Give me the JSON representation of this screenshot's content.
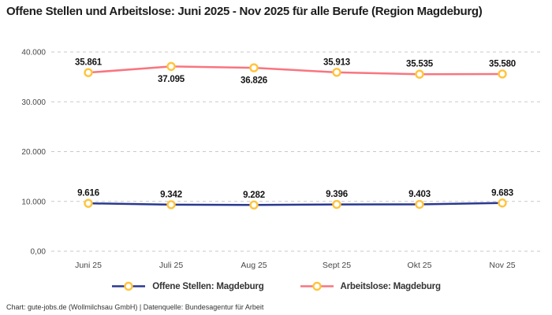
{
  "title": "Offene Stellen und Arbeitslose: Juni 2025 - Nov 2025 für alle Berufe (Region Magdeburg)",
  "footer": "Chart: gute-jobs.de (Wollmilchsau GmbH) | Datenquelle: Bundesagentur für Arbeit",
  "colors": {
    "offene_stellen_line": "#2A3990",
    "arbeitslose_line": "#F8757F",
    "marker_stroke": "#FFC43D",
    "marker_fill": "#FFFFFF",
    "gridline": "#C9C9C9",
    "axis_text": "#484848",
    "data_label": "#141414"
  },
  "chart_data": {
    "type": "line",
    "title": "Offene Stellen und Arbeitslose: Juni 2025 - Nov 2025 für alle Berufe (Region Magdeburg)",
    "categories": [
      "Juni 25",
      "Juli 25",
      "Aug 25",
      "Sept 25",
      "Okt 25",
      "Nov 25"
    ],
    "series": [
      {
        "name": "Offene Stellen: Magdeburg",
        "color": "#2A3990",
        "values": [
          9616,
          9342,
          9282,
          9396,
          9403,
          9683
        ],
        "labels": [
          "9.616",
          "9.342",
          "9.282",
          "9.396",
          "9.403",
          "9.683"
        ],
        "label_positions": [
          "above",
          "above",
          "above",
          "above",
          "above",
          "above"
        ]
      },
      {
        "name": "Arbeitslose: Magdeburg",
        "color": "#F8757F",
        "values": [
          35861,
          37095,
          36826,
          35913,
          35535,
          35580
        ],
        "labels": [
          "35.861",
          "37.095",
          "36.826",
          "35.913",
          "35.535",
          "35.580"
        ],
        "label_positions": [
          "above",
          "below",
          "below",
          "above",
          "above",
          "above"
        ]
      }
    ],
    "ylim": [
      0,
      40000
    ],
    "yticks": [
      {
        "value": 40000,
        "label": "40.000"
      },
      {
        "value": 30000,
        "label": "30.000"
      },
      {
        "value": 20000,
        "label": "20.000"
      },
      {
        "value": 10000,
        "label": "10.000"
      },
      {
        "value": 0,
        "label": "0,00"
      }
    ],
    "grid": "horizontal-dashed",
    "legend_position": "bottom",
    "marker": {
      "fill": "#FFFFFF",
      "stroke": "#FFC43D"
    }
  }
}
